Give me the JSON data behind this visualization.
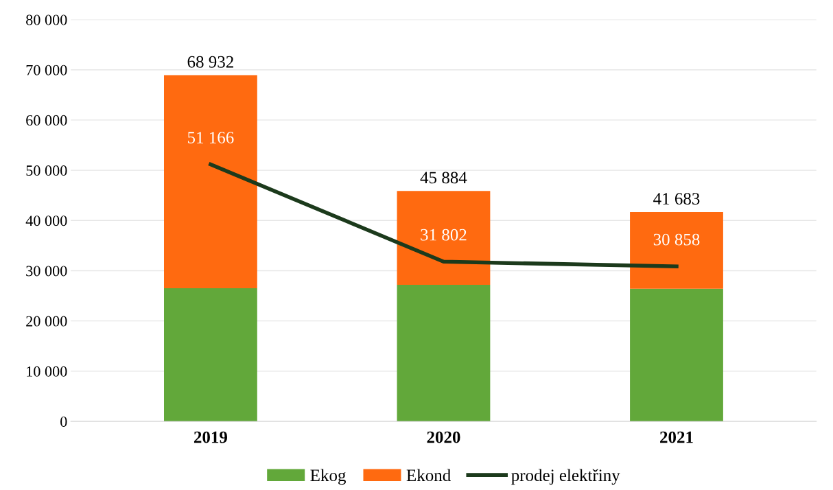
{
  "chart_data": {
    "type": "bar",
    "stacked": true,
    "categories": [
      "2019",
      "2020",
      "2021"
    ],
    "series": [
      {
        "name": "Ekog",
        "color": "#62a83a",
        "values": [
          26500,
          27200,
          26400
        ]
      },
      {
        "name": "Ekond",
        "color": "#ff6a10",
        "values": [
          42432,
          18684,
          15283
        ]
      },
      {
        "name": "prodej elektřiny",
        "type": "line",
        "color": "#1c3a1c",
        "values": [
          51166,
          31802,
          30858
        ],
        "value_labels": [
          "51 166",
          "31 802",
          "30 858"
        ]
      }
    ],
    "totals": [
      "68 932",
      "45 884",
      "41 683"
    ],
    "ylim": [
      0,
      80000
    ],
    "yticks": [
      {
        "value": 0,
        "label": "0"
      },
      {
        "value": 10000,
        "label": "10 000"
      },
      {
        "value": 20000,
        "label": "20 000"
      },
      {
        "value": 30000,
        "label": "30 000"
      },
      {
        "value": 40000,
        "label": "40 000"
      },
      {
        "value": 50000,
        "label": "50 000"
      },
      {
        "value": 60000,
        "label": "60 000"
      },
      {
        "value": 70000,
        "label": "70 000"
      },
      {
        "value": 80000,
        "label": "80 000"
      }
    ],
    "grid": "y",
    "legend": "bottom",
    "marker": "none",
    "line_style": "solid"
  }
}
